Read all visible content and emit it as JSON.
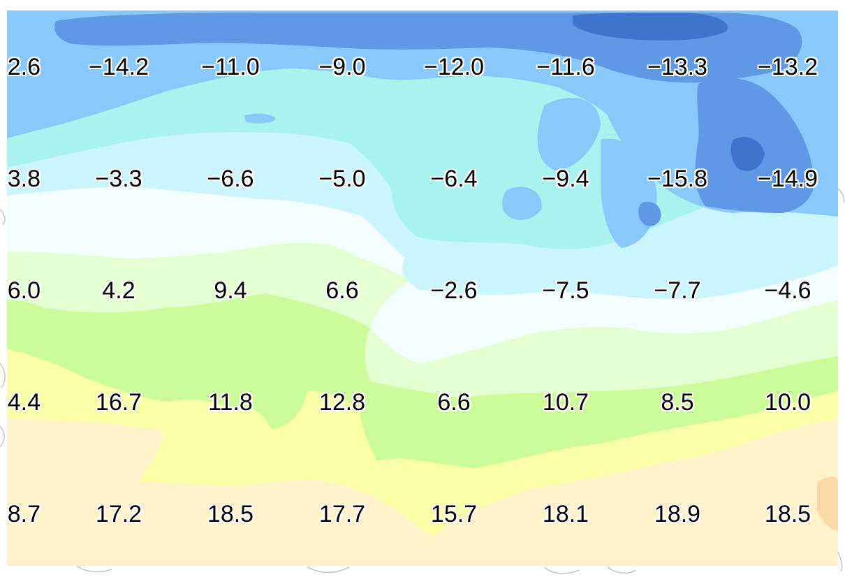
{
  "map": {
    "palette": {
      "deep_blue": "#3f73cc",
      "blue": "#5f99e6",
      "light_blue": "#89c8fb",
      "aqua": "#a9f3ee",
      "pale_cyan": "#cbf5fd",
      "near_white": "#f5feff",
      "pale_green": "#e4ffd2",
      "light_green": "#ccfb9a",
      "pale_yellow": "#f9ffa7",
      "cream": "#fdf2c9",
      "peach": "#fbd9a8",
      "outline_gray": "#c8c8c8"
    },
    "rows": [
      {
        "values": [
          "2.6",
          "−14.2",
          "−11.0",
          "−9.0",
          "−12.0",
          "−11.6",
          "−13.3",
          "−13.2"
        ]
      },
      {
        "values": [
          "3.8",
          "−3.3",
          "−6.6",
          "−5.0",
          "−6.4",
          "−9.4",
          "−15.8",
          "−14.9"
        ]
      },
      {
        "values": [
          "6.0",
          "4.2",
          "9.4",
          "6.6",
          "−2.6",
          "−7.5",
          "−7.7",
          "−4.6"
        ]
      },
      {
        "values": [
          "4.4",
          "16.7",
          "11.8",
          "12.8",
          "6.6",
          "10.7",
          "8.5",
          "10.0"
        ]
      },
      {
        "values": [
          "8.7",
          "17.2",
          "18.5",
          "17.7",
          "15.7",
          "18.1",
          "18.9",
          "18.5"
        ]
      }
    ]
  }
}
